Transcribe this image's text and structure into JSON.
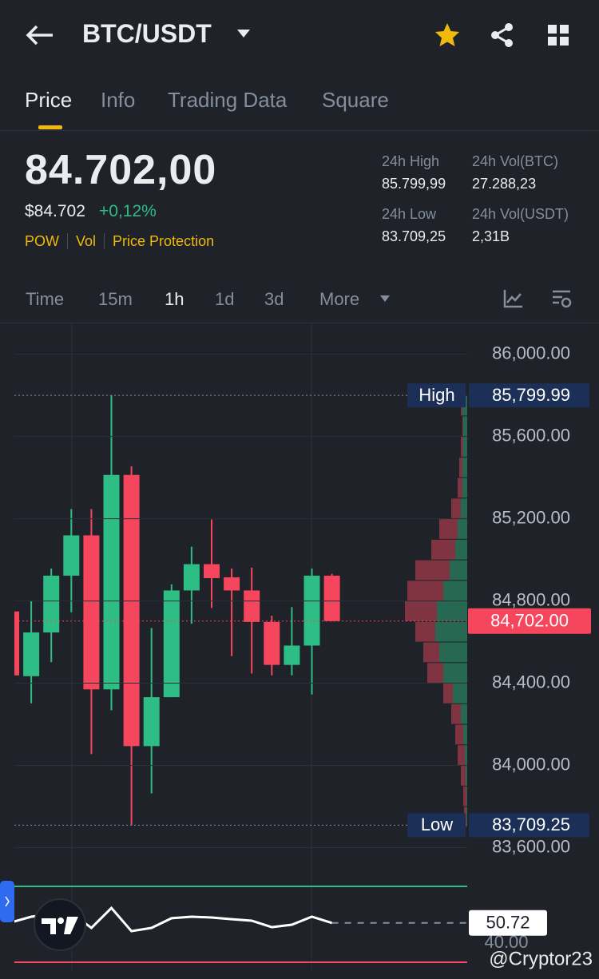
{
  "header": {
    "title": "BTC/USDT"
  },
  "tabs": [
    "Price",
    "Info",
    "Trading Data",
    "Square"
  ],
  "price": {
    "last": "84.702,00",
    "usd": "$84.702",
    "change": "+0,12%",
    "tags": [
      "POW",
      "Vol",
      "Price Protection"
    ]
  },
  "stats": [
    {
      "label": "24h High",
      "value": "85.799,99"
    },
    {
      "label": "24h Vol(BTC)",
      "value": "27.288,23"
    },
    {
      "label": "24h Low",
      "value": "83.709,25"
    },
    {
      "label": "24h Vol(USDT)",
      "value": "2,31B"
    }
  ],
  "intervals": [
    "Time",
    "15m",
    "1h",
    "1d",
    "3d",
    "More"
  ],
  "watermark": "@Cryptor23",
  "chart_data": [
    {
      "type": "candlestick",
      "up_color": "#2ebd85",
      "down_color": "#f6465d",
      "series": [
        {
          "open": [
            84749,
            84434,
            84647,
            84923,
            85119,
            84370,
            85413,
            84094,
            84332,
            84851,
            84979,
            84915,
            84851,
            84698,
            84489,
            84583,
            84923
          ],
          "high": [
            84749,
            84800,
            84958,
            85247,
            85247,
            85799.99,
            85455,
            84668,
            84881,
            85064,
            85196,
            84958,
            84962,
            84728,
            84770,
            84958,
            84932
          ],
          "low": [
            84438,
            84302,
            84502,
            84745,
            84055,
            84268,
            83709.25,
            83864,
            84332,
            84689,
            84766,
            84532,
            84447,
            84438,
            84438,
            84345,
            84702
          ],
          "close": [
            84438,
            84647,
            84923,
            85119,
            84370,
            85413,
            84094,
            84332,
            84851,
            84979,
            84911,
            84851,
            84698,
            84489,
            84583,
            84923,
            84702
          ]
        }
      ],
      "ylim": [
        83470,
        86150
      ],
      "yticks": [
        {
          "value": 86000,
          "label": "86,000.00"
        },
        {
          "value": 85600,
          "label": "85,600.00"
        },
        {
          "value": 85200,
          "label": "85,200.00"
        },
        {
          "value": 84800,
          "label": "84,800.00"
        },
        {
          "value": 84400,
          "label": "84,400.00"
        },
        {
          "value": 84000,
          "label": "84,000.00"
        },
        {
          "value": 83600,
          "label": "83,600.00"
        }
      ],
      "grid": true,
      "markers": [
        {
          "name": "High",
          "value": 85799.99,
          "label": "85,799.99"
        },
        {
          "name": "Low",
          "value": 83709.25,
          "label": "83,709.25"
        }
      ],
      "last": {
        "value": 84702,
        "label": "84,702.00",
        "color": "#f6465d"
      },
      "volume_profile": {
        "prices": [
          85750,
          85650,
          85550,
          85450,
          85350,
          85250,
          85150,
          85050,
          84950,
          84850,
          84750,
          84650,
          84550,
          84450,
          84350,
          84250,
          84150,
          84050,
          83950,
          83850,
          83750
        ],
        "buy": [
          6,
          5,
          5,
          6,
          6,
          8,
          12,
          15,
          22,
          30,
          38,
          40,
          35,
          30,
          18,
          8,
          5,
          3,
          2,
          1,
          1
        ],
        "sell": [
          2,
          1,
          3,
          4,
          6,
          12,
          23,
          30,
          43,
          45,
          40,
          25,
          20,
          20,
          12,
          12,
          10,
          9,
          6,
          4,
          3
        ]
      }
    },
    {
      "type": "line",
      "series": [
        {
          "color": "#ffffff",
          "values": [
            51.05,
            54.0,
            55.26,
            56.1,
            48.1,
            58.6,
            46.4,
            48.1,
            53.2,
            54.0,
            53.6,
            52.7,
            51.9,
            48.5,
            49.8,
            54.0,
            50.72
          ]
        }
      ],
      "ylim": [
        30,
        70
      ],
      "yticks": [
        {
          "value": 40,
          "label": "40.00"
        }
      ],
      "levels": [
        {
          "value": 70,
          "color": "#2ebd85"
        },
        {
          "value": 30,
          "color": "#f6465d"
        }
      ]
    }
  ]
}
